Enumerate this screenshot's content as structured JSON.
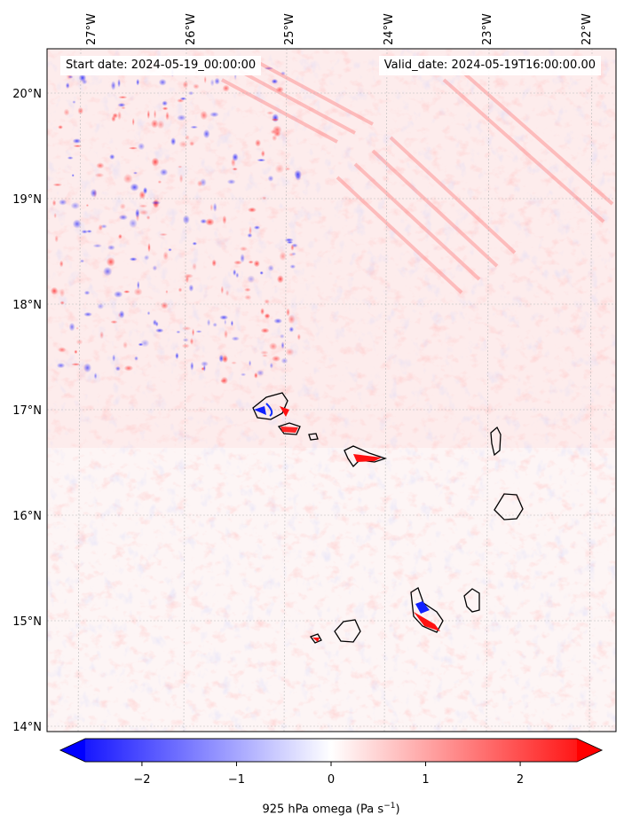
{
  "map": {
    "start_date_text": "Start date: 2024-05-19_00:00:00",
    "valid_date_text": "Valid_date: 2024-05-19T16:00:00.00",
    "lon_labels": [
      "27°W",
      "26°W",
      "25°W",
      "24°W",
      "23°W",
      "22°W"
    ],
    "lat_labels": [
      "20°N",
      "19°N",
      "18°N",
      "17°N",
      "16°N",
      "15°N",
      "14°N"
    ],
    "variable": "925 hPa omega",
    "units_base": "Pa s",
    "units_exp": "−1"
  },
  "colorbar": {
    "ticks": [
      "−2",
      "−1",
      "0",
      "1",
      "2"
    ],
    "tick_values": [
      -2,
      -1,
      0,
      1,
      2
    ],
    "range": [
      -2.6,
      2.6
    ],
    "low_color": "#0000ff",
    "mid_color": "#ffffff",
    "high_color": "#ff0000"
  },
  "islands": [
    "Santo Antão",
    "São Vicente",
    "Santa Luzia",
    "São Nicolau",
    "Sal",
    "Boa Vista",
    "Maio",
    "Santiago",
    "Fogo",
    "Brava"
  ]
}
